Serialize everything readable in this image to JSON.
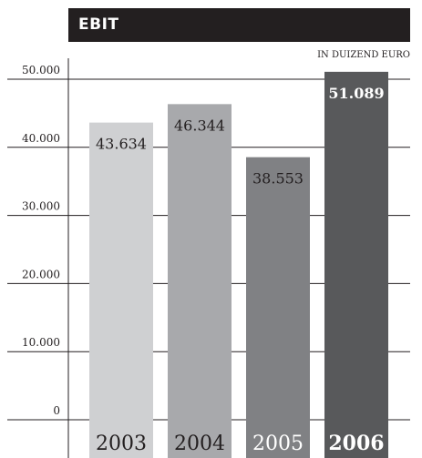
{
  "chart_data": {
    "type": "bar",
    "title": "EBIT",
    "unit": "IN DUIZEND EURO",
    "categories": [
      "2003",
      "2004",
      "2005",
      "2006"
    ],
    "values": [
      43634,
      46344,
      38553,
      51089
    ],
    "value_labels": [
      "43.634",
      "46.344",
      "38.553",
      "51.089"
    ],
    "yticks": [
      0,
      10000,
      20000,
      30000,
      40000,
      50000
    ],
    "ytick_labels": [
      "0",
      "10.000",
      "20.000",
      "30.000",
      "40.000",
      "50.000"
    ],
    "ylim": [
      0,
      50000
    ],
    "grid": true,
    "colors": [
      "#cfd0d2",
      "#a8a9ac",
      "#808184",
      "#58595b"
    ],
    "label_colors": [
      "#231f20",
      "#231f20",
      "#231f20",
      "#ffffff"
    ],
    "category_label_colors": [
      "#231f20",
      "#231f20",
      "#ffffff",
      "#ffffff"
    ],
    "highlight_category": "2006"
  }
}
